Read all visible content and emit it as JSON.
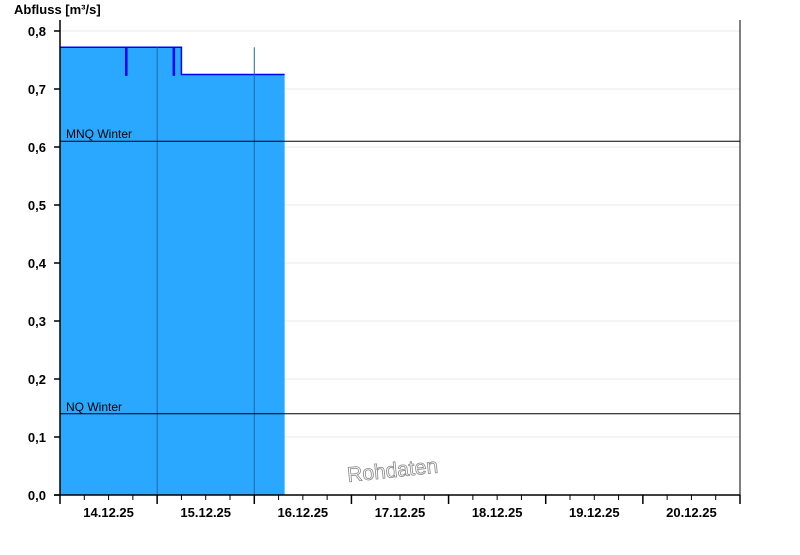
{
  "chart_data": {
    "type": "area",
    "ylabel": "Abfluss [m³/s]",
    "ylim": [
      0,
      0.8
    ],
    "yticks": [
      "0,0",
      "0,1",
      "0,2",
      "0,3",
      "0,4",
      "0,5",
      "0,6",
      "0,7",
      "0,8"
    ],
    "xlim": [
      "2025-12-14T00:00",
      "2025-12-21T00:00"
    ],
    "xtick_labels": [
      "14.12.25",
      "15.12.25",
      "16.12.25",
      "17.12.25",
      "18.12.25",
      "19.12.25",
      "20.12.25"
    ],
    "grid": true,
    "fill_color": "#2aa8ff",
    "line_color": "#0000ff",
    "series": [
      {
        "points": [
          [
            "2025-12-14T00:00",
            0.772
          ],
          [
            "2025-12-14T16:00",
            0.772
          ],
          [
            "2025-12-14T16:15",
            0.724
          ],
          [
            "2025-12-14T16:30",
            0.772
          ],
          [
            "2025-12-15T03:45",
            0.772
          ],
          [
            "2025-12-15T04:00",
            0.724
          ],
          [
            "2025-12-15T04:15",
            0.772
          ],
          [
            "2025-12-15T05:45",
            0.772
          ],
          [
            "2025-12-15T06:00",
            0.725
          ],
          [
            "2025-12-16T07:30",
            0.725
          ]
        ]
      }
    ],
    "reference_lines": [
      {
        "label": "MNQ Winter",
        "value": 0.61
      },
      {
        "label": "NQ Winter",
        "value": 0.14
      }
    ],
    "watermark": "Rohdaten"
  }
}
